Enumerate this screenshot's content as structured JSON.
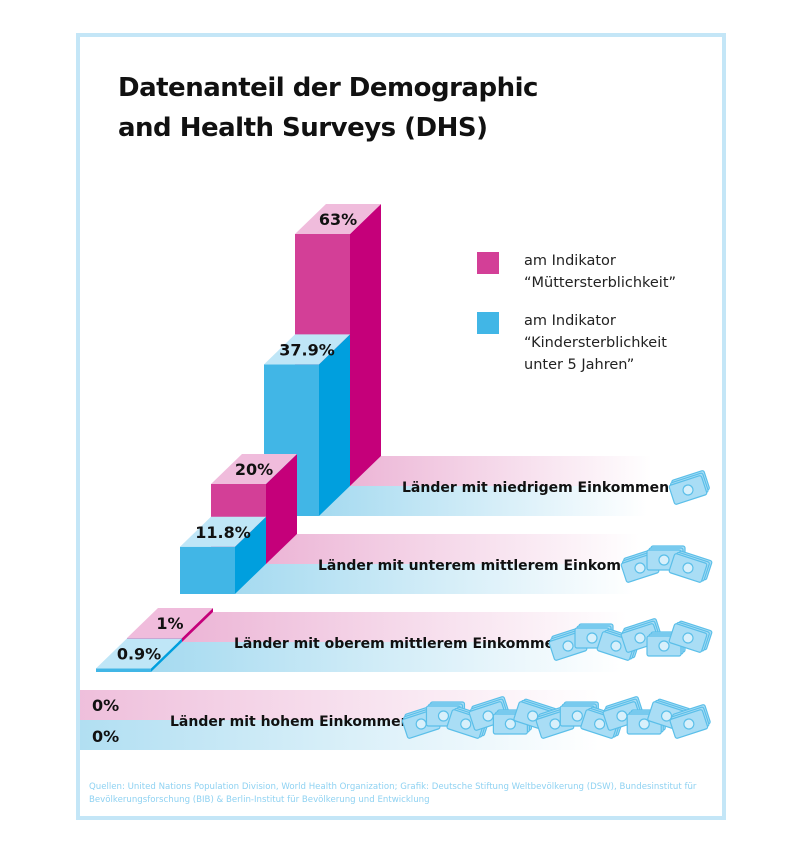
{
  "title": "Datenanteil der Demographic and Health Surveys (DHS)",
  "source": "Quellen: United Nations Population Division, World Health Organization; Grafik: Deutsche Stiftung Weltbevölkerung (DSW), Bundesinstitut für Bevölkerungsforschung (BIB) & Berlin-Institut für Bevölkerung und Entwicklung",
  "colors": {
    "pink": "#d33f97",
    "pink_side": "#c5007a",
    "pink_top": "#f0bcdc",
    "blue": "#41b6e6",
    "blue_side": "#009fde",
    "blue_top": "#bfe6f7",
    "frame": "#c4e6f7"
  },
  "chart_data": {
    "type": "bar",
    "style": "3d-stacked-rows",
    "categories": [
      "Länder mit niedrigem Einkommen",
      "Länder mit unterem mittlerem Einkommen",
      "Länder mit oberem mittlerem Einkommen",
      "Länder mit hohem Einkommen"
    ],
    "series": [
      {
        "name": "am Indikator\n“Müttersterblichkeit”",
        "values": [
          63,
          20,
          1,
          0
        ],
        "labels": [
          "63%",
          "20%",
          "1%",
          "0%"
        ],
        "color": "#d33f97"
      },
      {
        "name": "am Indikator\n“Kindersterblichkeit\nunter 5 Jahren”",
        "values": [
          37.9,
          11.8,
          0.9,
          0
        ],
        "labels": [
          "37.9%",
          "11.8%",
          "0.9%",
          "0%"
        ],
        "color": "#41b6e6"
      }
    ],
    "unit": "%",
    "legend": "top-right",
    "icon": "money-bills-icon"
  }
}
